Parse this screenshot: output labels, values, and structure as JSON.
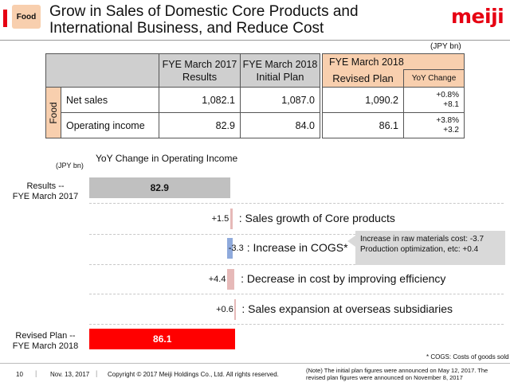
{
  "header": {
    "badge": "Food",
    "title": "Grow in Sales of Domestic Core Products and International Business, and Reduce Cost",
    "logo": "meiji"
  },
  "table": {
    "unit": "(JPY bn)",
    "col1": {
      "line1": "FYE March 2017",
      "line2": "Results"
    },
    "col2": {
      "line1": "FYE March 2018",
      "line2": "Initial Plan"
    },
    "col3": {
      "line1": "FYE March 2018",
      "line2": "Revised Plan",
      "sub": "YoY Change"
    },
    "segment": "Food",
    "rows": [
      {
        "label": "Net sales",
        "results": "1,082.1",
        "initial": "1,087.0",
        "revised": "1,090.2",
        "yoy_pct": "+0.8%",
        "yoy_abs": "+8.1"
      },
      {
        "label": "Operating income",
        "results": "82.9",
        "initial": "84.0",
        "revised": "86.1",
        "yoy_pct": "+3.8%",
        "yoy_abs": "+3.2"
      }
    ]
  },
  "chart_data": {
    "type": "bar",
    "title": "YoY Change in Operating Income",
    "unit": "(JPY bn)",
    "bars": [
      {
        "category": "Results --\nFYE March 2017",
        "label": "82.9",
        "start": 0,
        "end": 82.9,
        "kind": "total",
        "desc": ""
      },
      {
        "category": "",
        "label": "+1.5",
        "start": 82.9,
        "end": 84.4,
        "kind": "increase",
        "desc": ": Sales growth of Core products"
      },
      {
        "category": "",
        "label": "-3.3",
        "start": 81.1,
        "end": 84.4,
        "kind": "decrease",
        "desc": ": Increase in COGS*"
      },
      {
        "category": "",
        "label": "+4.4",
        "start": 81.1,
        "end": 85.5,
        "kind": "increase",
        "desc": ": Decrease in cost by improving efficiency"
      },
      {
        "category": "",
        "label": "+0.6",
        "start": 85.5,
        "end": 86.1,
        "kind": "increase",
        "desc": ": Sales expansion at overseas subsidiaries"
      },
      {
        "category": "Revised Plan --\nFYE March 2018",
        "label": "86.1",
        "start": 0,
        "end": 86.1,
        "kind": "final",
        "desc": ""
      }
    ],
    "colors": {
      "total": "#c0c0c0",
      "increase": "#e6b9b8",
      "decrease": "#8faadc",
      "final": "#ff0000"
    }
  },
  "chart_labels": {
    "cat_results_1": "Results --",
    "cat_results_2": "FYE March 2017",
    "cat_revised_1": "Revised Plan --",
    "cat_revised_2": "FYE March 2018"
  },
  "callout": {
    "line1": "Increase in raw materials cost:  -3.7",
    "line2": "Production optimization, etc: +0.4"
  },
  "cogs_note": "* COGS: Costs of goods sold",
  "footer": {
    "page": "10",
    "date": "Nov. 13, 2017",
    "copyright": "Copyright © 2017 Meiji Holdings Co., Ltd. All rights reserved.",
    "note": "(Note) The initial plan figures were announced on May 12, 2017. The revised plan figures were announced on November 8, 2017"
  }
}
